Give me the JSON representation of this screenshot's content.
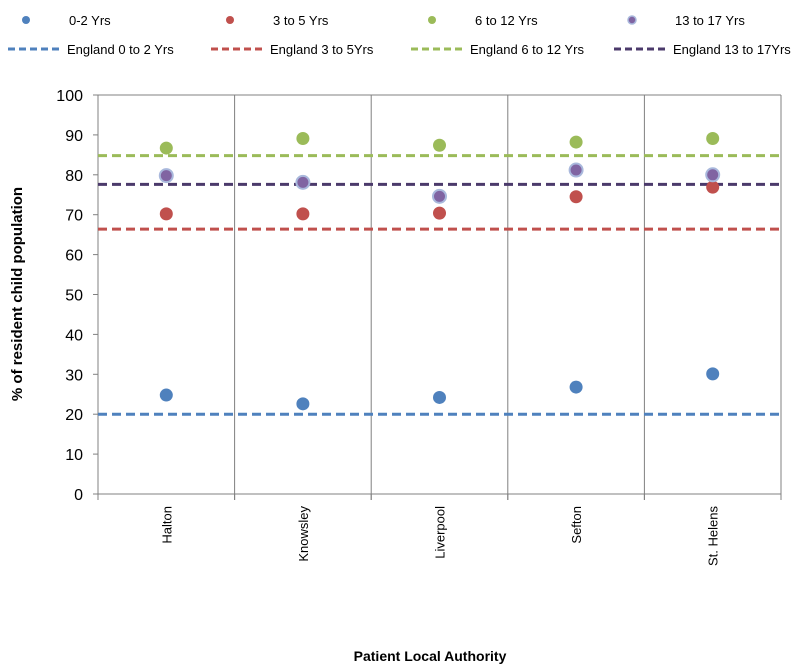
{
  "chart_data": {
    "type": "scatter",
    "title": "",
    "xlabel": "Patient Local Authority",
    "ylabel": "% of resident  child  population",
    "ylim": [
      0,
      100
    ],
    "yticks": [
      0,
      10,
      20,
      30,
      40,
      50,
      60,
      70,
      80,
      90,
      100
    ],
    "grid": "vertical category separators",
    "legend_position": "top",
    "categories": [
      "Halton",
      "Knowsley",
      "Liverpool",
      "Sefton",
      "St. Helens"
    ],
    "series": [
      {
        "name": "0-2 Yrs",
        "color": "#4f81bd",
        "values": [
          24.8,
          22.6,
          24.2,
          26.8,
          30.1
        ]
      },
      {
        "name": "3 to 5 Yrs",
        "color": "#c0504d",
        "values": [
          70.2,
          70.2,
          70.4,
          74.5,
          76.9
        ]
      },
      {
        "name": "6 to 12 Yrs",
        "color": "#9bbb59",
        "values": [
          86.7,
          89.1,
          87.4,
          88.2,
          89.1
        ]
      },
      {
        "name": "13 to 17 Yrs",
        "color": "#8064a2",
        "values": [
          79.8,
          78.1,
          74.6,
          81.2,
          80.0
        ]
      }
    ],
    "reference_lines": [
      {
        "name": "England 0 to 2 Yrs",
        "color": "#4f81bd",
        "value": 20.0
      },
      {
        "name": "England 3 to 5Yrs",
        "color": "#c0504d",
        "value": 66.4
      },
      {
        "name": "England 6 to 12 Yrs",
        "color": "#9bbb59",
        "value": 84.8
      },
      {
        "name": "England 13 to 17Yrs",
        "color": "#4b3a6b",
        "value": 77.6
      }
    ]
  }
}
